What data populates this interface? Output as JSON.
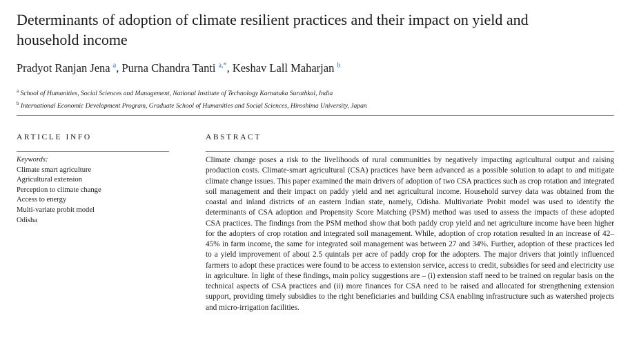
{
  "header": {
    "title": "Determinants of adoption of climate resilient practices and their impact on yield and household income",
    "authors": [
      {
        "name": "Pradyot Ranjan Jena",
        "affil": "a"
      },
      {
        "name": "Purna Chandra Tanti",
        "affil": "a,*"
      },
      {
        "name": "Keshav Lall Maharjan",
        "affil": "b"
      }
    ],
    "affiliations": [
      {
        "mark": "a",
        "text": "School of Humanities, Social Sciences and Management, National Institute of Technology Karnataka Surathkal, India"
      },
      {
        "mark": "b",
        "text": "International Economic Development Program, Graduate School of Humanities and Social Sciences, Hiroshima University, Japan"
      }
    ]
  },
  "article_info": {
    "heading": "ARTICLE INFO",
    "keywords_label": "Keywords:",
    "keywords": [
      "Climate smart agriculture",
      "Agricultural extension",
      "Perception to climate change",
      "Access to energy",
      "Multi-variate probit model",
      "Odisha"
    ]
  },
  "abstract": {
    "heading": "ABSTRACT",
    "text": "Climate change poses a risk to the livelihoods of rural communities by negatively impacting agricultural output and raising production costs. Climate-smart agricultural (CSA) practices have been advanced as a possible solution to adapt to and mitigate climate change issues. This paper examined the main drivers of adoption of two CSA practices such as crop rotation and integrated soil management and their impact on paddy yield and net agricultural income. Household survey data was obtained from the coastal and inland districts of an eastern Indian state, namely, Odisha. Multivariate Probit model was used to identify the determinants of CSA adoption and Propensity Score Matching (PSM) method was used to assess the impacts of these adopted CSA practices. The findings from the PSM method show that both paddy crop yield and net agriculture income have been higher for the adopters of crop rotation and integrated soil management. While, adoption of crop rotation resulted in an increase of 42–45% in farm income, the same for integrated soil management was between 27 and 34%. Further, adoption of these practices led to a yield improvement of about 2.5 quintals per acre of paddy crop for the adopters. The major drivers that jointly influenced farmers to adopt these practices were found to be access to extension service, access to credit, subsidies for seed and electricity use in agriculture. In light of these findings, main policy suggestions are – (i) extension staff need to be trained on regular basis on the technical aspects of CSA practices and (ii) more finances for CSA need to be raised and allocated for strengthening extension support, providing timely subsidies to the right beneficiaries and building CSA enabling infrastructure such as watershed projects and micro-irrigation facilities."
  }
}
